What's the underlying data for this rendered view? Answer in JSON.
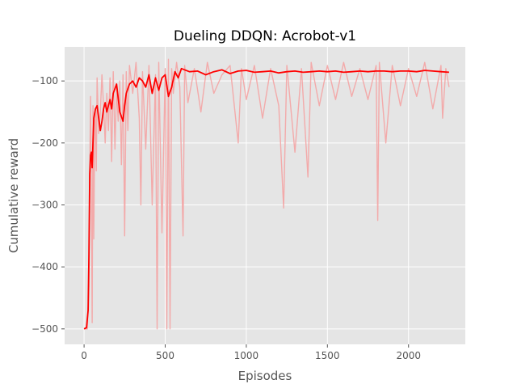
{
  "chart_data": {
    "type": "line",
    "title": "Dueling DDQN: Acrobot-v1",
    "xlabel": "Episodes",
    "ylabel": "Cumulative reward",
    "xlim": [
      -120,
      2350
    ],
    "ylim": [
      -525,
      -45
    ],
    "xticks": [
      0,
      500,
      1000,
      1500,
      2000
    ],
    "xtick_labels": [
      "0",
      "500",
      "1000",
      "1500",
      "2000"
    ],
    "yticks": [
      -500,
      -400,
      -300,
      -200,
      -100
    ],
    "ytick_labels": [
      "−500",
      "−400",
      "−300",
      "−200",
      "−100"
    ],
    "grid": true,
    "style": "ggplot",
    "series": [
      {
        "role": "raw",
        "color": "#f4a3a3",
        "x": [
          0,
          20,
          30,
          35,
          40,
          45,
          50,
          55,
          60,
          65,
          70,
          75,
          80,
          90,
          100,
          110,
          120,
          130,
          140,
          150,
          160,
          170,
          180,
          190,
          200,
          210,
          220,
          230,
          240,
          250,
          260,
          270,
          280,
          300,
          320,
          340,
          350,
          360,
          380,
          400,
          420,
          440,
          450,
          460,
          480,
          500,
          510,
          520,
          530,
          540,
          550,
          570,
          590,
          610,
          620,
          640,
          680,
          720,
          760,
          800,
          850,
          900,
          950,
          970,
          1000,
          1050,
          1100,
          1150,
          1200,
          1230,
          1250,
          1300,
          1340,
          1380,
          1400,
          1450,
          1500,
          1550,
          1600,
          1650,
          1700,
          1750,
          1800,
          1810,
          1820,
          1860,
          1900,
          1950,
          2000,
          2050,
          2100,
          2150,
          2200,
          2210,
          2230,
          2250
        ],
        "y": [
          -500,
          -500,
          -430,
          -240,
          -125,
          -280,
          -490,
          -140,
          -355,
          -200,
          -150,
          -245,
          -95,
          -185,
          -150,
          -90,
          -140,
          -200,
          -120,
          -180,
          -95,
          -230,
          -85,
          -210,
          -110,
          -165,
          -100,
          -235,
          -90,
          -350,
          -85,
          -180,
          -75,
          -120,
          -70,
          -160,
          -300,
          -85,
          -210,
          -75,
          -300,
          -90,
          -500,
          -70,
          -345,
          -80,
          -500,
          -65,
          -500,
          -80,
          -120,
          -70,
          -110,
          -350,
          -75,
          -135,
          -80,
          -150,
          -70,
          -120,
          -90,
          -75,
          -200,
          -80,
          -130,
          -75,
          -160,
          -80,
          -140,
          -305,
          -75,
          -215,
          -80,
          -255,
          -70,
          -140,
          -75,
          -130,
          -70,
          -125,
          -80,
          -130,
          -75,
          -325,
          -70,
          -200,
          -75,
          -140,
          -80,
          -125,
          -70,
          -145,
          -75,
          -160,
          -80,
          -110
        ]
      },
      {
        "role": "smoothed",
        "color": "#ff0000",
        "x": [
          0,
          15,
          25,
          30,
          35,
          40,
          45,
          50,
          55,
          60,
          70,
          80,
          100,
          110,
          120,
          130,
          140,
          150,
          160,
          170,
          180,
          200,
          220,
          240,
          250,
          260,
          280,
          300,
          320,
          340,
          360,
          380,
          400,
          420,
          440,
          460,
          480,
          500,
          520,
          540,
          560,
          580,
          600,
          620,
          650,
          700,
          750,
          800,
          850,
          900,
          950,
          1000,
          1050,
          1100,
          1150,
          1200,
          1250,
          1300,
          1350,
          1400,
          1450,
          1500,
          1550,
          1600,
          1650,
          1700,
          1750,
          1800,
          1850,
          1900,
          1950,
          2000,
          2050,
          2100,
          2150,
          2200,
          2250
        ],
        "y": [
          -500,
          -498,
          -470,
          -380,
          -250,
          -220,
          -215,
          -240,
          -200,
          -160,
          -145,
          -140,
          -180,
          -165,
          -145,
          -135,
          -150,
          -140,
          -130,
          -145,
          -120,
          -105,
          -150,
          -165,
          -140,
          -120,
          -105,
          -100,
          -110,
          -95,
          -100,
          -110,
          -90,
          -120,
          -95,
          -115,
          -95,
          -90,
          -125,
          -110,
          -85,
          -95,
          -80,
          -82,
          -85,
          -84,
          -90,
          -85,
          -82,
          -88,
          -84,
          -83,
          -86,
          -85,
          -84,
          -87,
          -85,
          -84,
          -86,
          -85,
          -84,
          -85,
          -84,
          -86,
          -85,
          -84,
          -85,
          -84,
          -84,
          -85,
          -84,
          -84,
          -85,
          -83,
          -84,
          -85,
          -86
        ]
      }
    ]
  }
}
